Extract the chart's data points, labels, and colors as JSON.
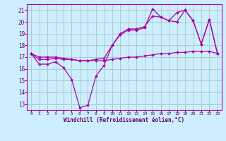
{
  "bg_color": "#cceeff",
  "grid_color": "#aacccc",
  "line_color": "#aa00aa",
  "marker_color": "#aa00aa",
  "xlabel": "Windchill (Refroidissement éolien,°C)",
  "xlabel_color": "#660066",
  "tick_color": "#660066",
  "ylim": [
    12.5,
    21.5
  ],
  "xlim": [
    -0.5,
    23.5
  ],
  "yticks": [
    13,
    14,
    15,
    16,
    17,
    18,
    19,
    20,
    21
  ],
  "xticks": [
    0,
    1,
    2,
    3,
    4,
    5,
    6,
    7,
    8,
    9,
    10,
    11,
    12,
    13,
    14,
    15,
    16,
    17,
    18,
    19,
    20,
    21,
    22,
    23
  ],
  "series": [
    [
      17.3,
      16.4,
      16.4,
      16.6,
      16.1,
      15.1,
      12.7,
      12.9,
      15.4,
      16.3,
      18.0,
      18.9,
      19.3,
      19.3,
      19.5,
      21.1,
      20.4,
      20.1,
      20.8,
      21.0,
      20.1,
      18.1,
      20.2,
      17.3
    ],
    [
      17.3,
      16.8,
      16.8,
      16.9,
      16.8,
      16.8,
      16.7,
      16.7,
      16.8,
      16.9,
      18.0,
      19.0,
      19.4,
      19.4,
      19.6,
      20.5,
      20.4,
      20.1,
      20.0,
      21.0,
      20.1,
      18.1,
      20.2,
      17.3
    ],
    [
      17.3,
      17.0,
      17.0,
      17.0,
      16.9,
      16.8,
      16.7,
      16.7,
      16.7,
      16.7,
      16.8,
      16.9,
      17.0,
      17.0,
      17.1,
      17.2,
      17.3,
      17.3,
      17.4,
      17.4,
      17.5,
      17.5,
      17.5,
      17.3
    ]
  ]
}
